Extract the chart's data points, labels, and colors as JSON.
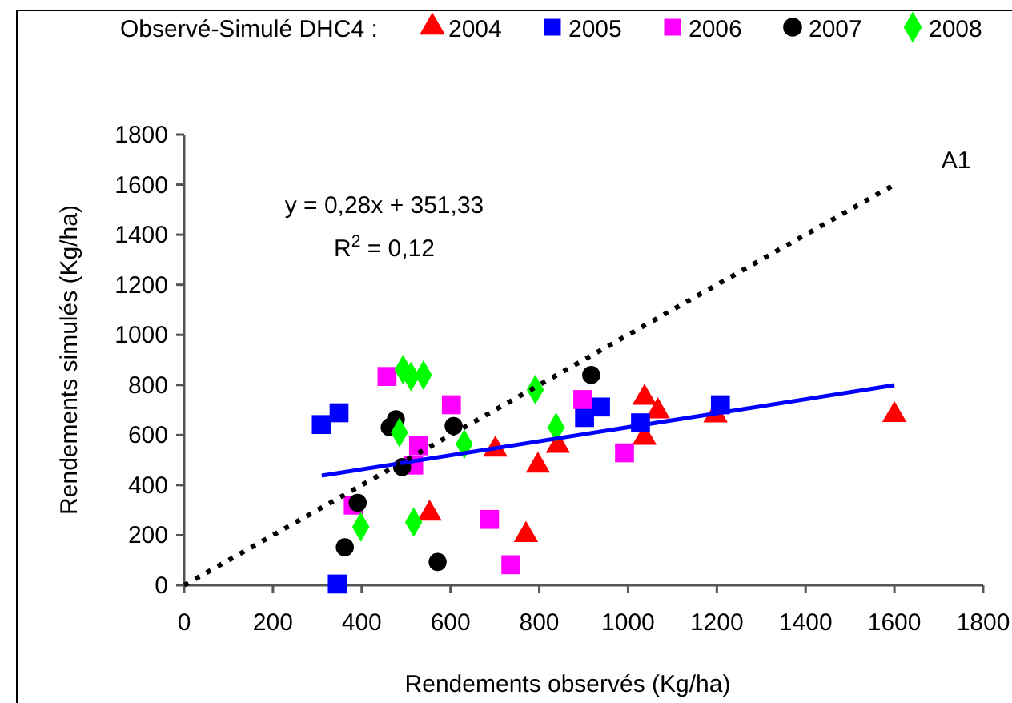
{
  "chart_data": {
    "type": "scatter",
    "legend_title": "Observé-Simulé DHC4 :",
    "xlabel": "Rendements observés (Kg/ha)",
    "ylabel": "Rendements simulés (Kg/ha)",
    "xlim": [
      0,
      1800
    ],
    "ylim": [
      0,
      1800
    ],
    "xticks": [
      0,
      200,
      400,
      600,
      800,
      1000,
      1200,
      1400,
      1600,
      1800
    ],
    "yticks": [
      0,
      200,
      400,
      600,
      800,
      1000,
      1200,
      1400,
      1600,
      1800
    ],
    "grid": false,
    "legend": "top",
    "annotations": [
      "y = 0,28x + 351,33",
      "R$^{2}$ = 0,12",
      "A1"
    ],
    "series": [
      {
        "name": "2004",
        "color": "#ff0000",
        "marker": "triangle",
        "x": [
          701,
          797,
          842,
          553,
          770,
          1037,
          1067,
          1037,
          1197,
          1600
        ],
        "values": [
          542,
          478,
          557,
          286,
          201,
          749,
          695,
          589,
          679,
          680
        ]
      },
      {
        "name": "2005",
        "color": "#0000ff",
        "marker": "square",
        "x": [
          309,
          349,
          345,
          902,
          938,
          1028,
          1208
        ],
        "values": [
          642,
          689,
          5,
          670,
          712,
          649,
          721
        ]
      },
      {
        "name": "2006",
        "color": "#ff00ff",
        "marker": "square",
        "x": [
          457,
          602,
          528,
          517,
          381,
          688,
          736,
          898,
          992
        ],
        "values": [
          834,
          721,
          557,
          480,
          320,
          263,
          82,
          742,
          529
        ]
      },
      {
        "name": "2007",
        "color": "#000000",
        "marker": "circle",
        "x": [
          463,
          477,
          607,
          491,
          391,
          362,
          571,
          917
        ],
        "values": [
          631,
          663,
          636,
          472,
          329,
          152,
          93,
          840
        ]
      },
      {
        "name": "2008",
        "color": "#00ff00",
        "marker": "diamond",
        "x": [
          493,
          511,
          539,
          485,
          631,
          791,
          838,
          398,
          517
        ],
        "values": [
          861,
          834,
          840,
          610,
          564,
          781,
          631,
          233,
          252
        ]
      },
      {
        "type": "line",
        "color": "#0000ff",
        "line_style": "solid",
        "x": [
          310,
          1600
        ],
        "values": [
          438,
          799
        ]
      },
      {
        "type": "line",
        "color": "#000000",
        "line_style": "dotted",
        "x": [
          0,
          1600
        ],
        "values": [
          0,
          1600
        ]
      }
    ]
  }
}
